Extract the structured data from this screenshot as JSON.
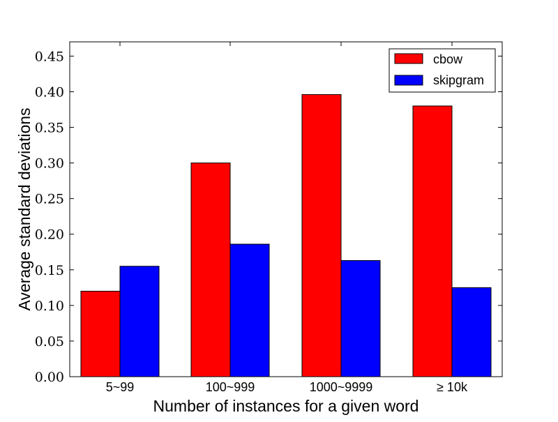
{
  "chart_data": {
    "type": "bar",
    "title": "",
    "xlabel": "Number of instances for a given word",
    "ylabel": "Average standard deviations",
    "categories": [
      "5~99",
      "100~999",
      "1000~9999",
      "≥ 10k"
    ],
    "series": [
      {
        "name": "cbow",
        "color": "#ff0000",
        "values": [
          0.12,
          0.3,
          0.396,
          0.38
        ]
      },
      {
        "name": "skipgram",
        "color": "#0000ff",
        "values": [
          0.155,
          0.186,
          0.163,
          0.125
        ]
      }
    ],
    "ylim": [
      0,
      0.47
    ],
    "yticks": [
      "0.00",
      "0.05",
      "0.10",
      "0.15",
      "0.20",
      "0.25",
      "0.30",
      "0.35",
      "0.40",
      "0.45"
    ],
    "grid": false,
    "legend_position": "upper right"
  }
}
